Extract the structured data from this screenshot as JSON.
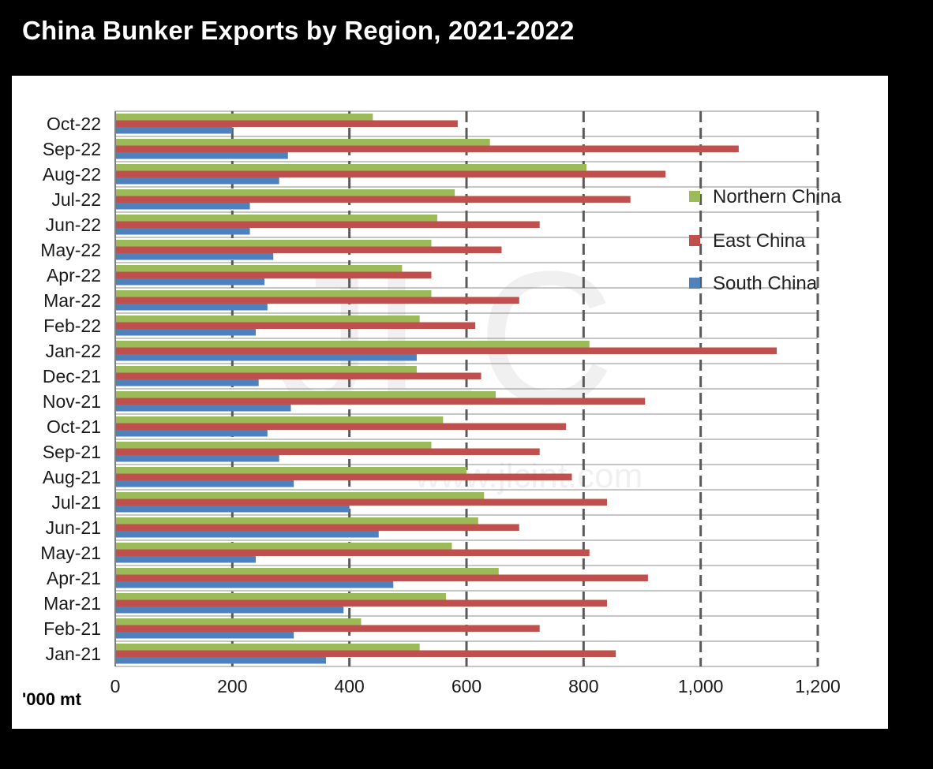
{
  "title": "China Bunker Exports by Region, 2021-2022",
  "watermark": {
    "logo": "JLC",
    "url": "www.jlcint.com"
  },
  "colors": {
    "northern": "#9bbb59",
    "east": "#c0504d",
    "south": "#4f81bd"
  },
  "chart_data": {
    "type": "bar",
    "orientation": "horizontal",
    "title": "China Bunker Exports by Region, 2021-2022",
    "xlabel": "'000 mt",
    "ylabel": "",
    "xlim": [
      0,
      1200
    ],
    "xticks": [
      0,
      200,
      400,
      600,
      800,
      1000,
      1200
    ],
    "xtick_labels": [
      "0",
      "200",
      "400",
      "600",
      "800",
      "1,000",
      "1,200"
    ],
    "grid": "vertical dashed",
    "legend_position": "right",
    "categories": [
      "Oct-22",
      "Sep-22",
      "Aug-22",
      "Jul-22",
      "Jun-22",
      "May-22",
      "Apr-22",
      "Mar-22",
      "Feb-22",
      "Jan-22",
      "Dec-21",
      "Nov-21",
      "Oct-21",
      "Sep-21",
      "Aug-21",
      "Jul-21",
      "Jun-21",
      "May-21",
      "Apr-21",
      "Mar-21",
      "Feb-21",
      "Jan-21"
    ],
    "series": [
      {
        "name": "Northern China",
        "values": [
          440,
          640,
          805,
          580,
          550,
          540,
          490,
          540,
          520,
          810,
          515,
          650,
          560,
          540,
          600,
          630,
          620,
          575,
          655,
          565,
          420,
          520
        ]
      },
      {
        "name": "East China",
        "values": [
          585,
          1065,
          940,
          880,
          725,
          660,
          540,
          690,
          615,
          1130,
          625,
          905,
          770,
          725,
          780,
          840,
          690,
          810,
          910,
          840,
          725,
          855
        ]
      },
      {
        "name": "South China",
        "values": [
          200,
          295,
          280,
          230,
          230,
          270,
          255,
          260,
          240,
          515,
          245,
          300,
          260,
          280,
          305,
          400,
          450,
          240,
          475,
          390,
          305,
          360
        ]
      }
    ]
  }
}
